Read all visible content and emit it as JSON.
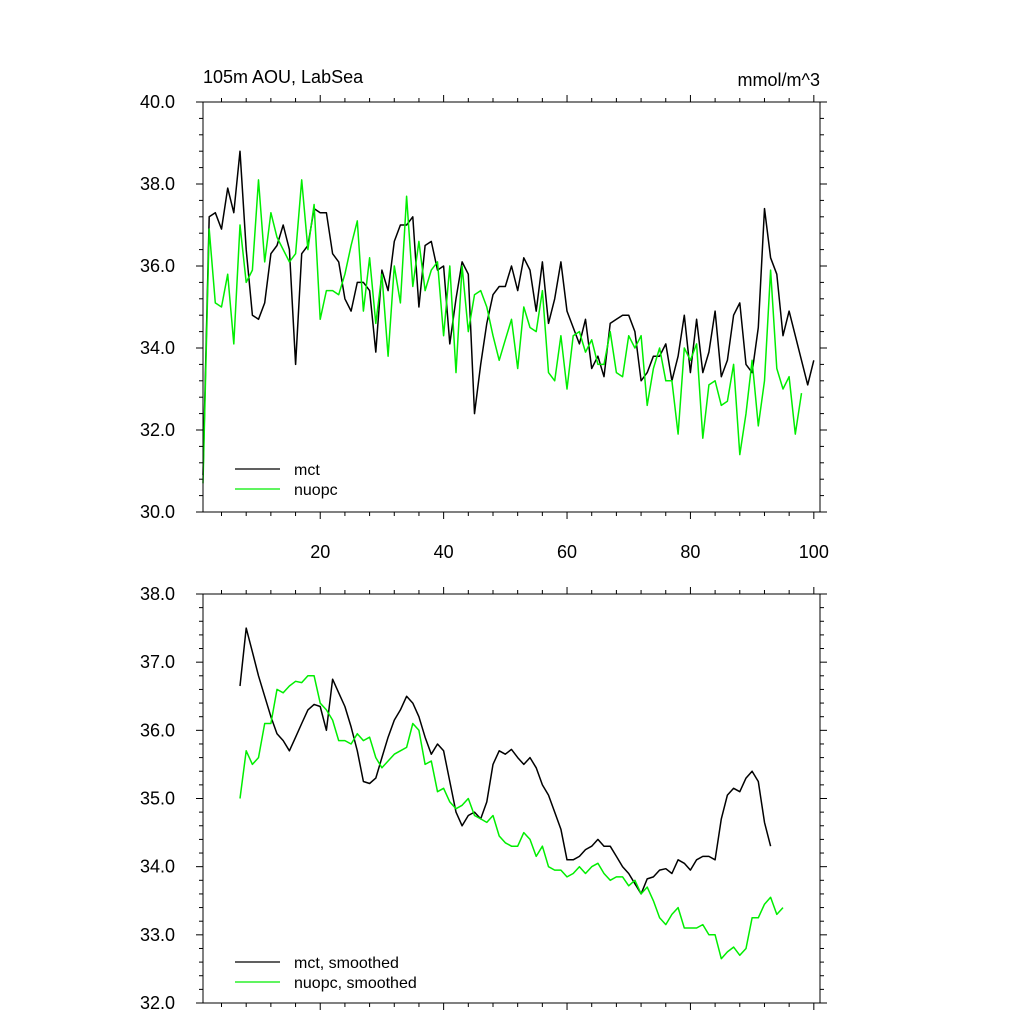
{
  "chart_data": [
    {
      "type": "line",
      "title": "105m AOU, LabSea",
      "units": "mmol/m^3",
      "xlim": [
        1,
        101
      ],
      "ylim": [
        30,
        40
      ],
      "yticks": [
        "30.0",
        "32.0",
        "34.0",
        "36.0",
        "38.0",
        "40.0"
      ],
      "xticks": [
        "20",
        "40",
        "60",
        "80",
        "100"
      ],
      "legend_position": "bottom-left",
      "series": [
        {
          "name": "mct",
          "color": "#000000",
          "values": [
            30.9,
            37.2,
            37.3,
            36.9,
            37.9,
            37.3,
            38.8,
            36.4,
            34.8,
            34.7,
            35.1,
            36.3,
            36.5,
            37.0,
            36.4,
            33.6,
            36.3,
            36.5,
            37.4,
            37.3,
            37.3,
            36.3,
            36.1,
            35.2,
            34.9,
            35.6,
            35.6,
            35.4,
            33.9,
            35.9,
            35.4,
            36.6,
            37.0,
            37.0,
            37.2,
            35.0,
            36.5,
            36.6,
            35.9,
            36.0,
            34.1,
            35.2,
            36.1,
            35.8,
            32.4,
            33.6,
            34.6,
            35.3,
            35.5,
            35.5,
            36.0,
            35.4,
            36.2,
            35.9,
            34.9,
            36.1,
            34.6,
            35.2,
            36.1,
            34.9,
            34.5,
            34.1,
            34.7,
            33.5,
            33.8,
            33.3,
            34.6,
            34.7,
            34.8,
            34.8,
            34.4,
            33.2,
            33.4,
            33.8,
            33.8,
            34.1,
            33.2,
            33.8,
            34.8,
            33.4,
            34.7,
            33.4,
            33.9,
            34.9,
            33.3,
            33.7,
            34.8,
            35.1,
            33.6,
            33.4,
            34.5,
            37.4,
            36.2,
            35.8,
            34.3,
            34.9,
            34.3,
            33.7,
            33.1,
            33.7
          ]
        },
        {
          "name": "nuopc",
          "color": "#00ee00",
          "values": [
            30.7,
            36.9,
            35.1,
            35.0,
            35.8,
            34.1,
            37.0,
            35.6,
            35.9,
            38.1,
            36.1,
            37.3,
            36.7,
            36.4,
            36.1,
            36.3,
            38.1,
            36.4,
            37.5,
            34.7,
            35.4,
            35.4,
            35.3,
            35.8,
            36.5,
            37.1,
            34.9,
            36.2,
            34.6,
            35.8,
            33.8,
            36.0,
            35.1,
            37.7,
            35.5,
            36.6,
            35.4,
            35.9,
            36.1,
            34.3,
            36.0,
            33.4,
            36.0,
            34.4,
            35.3,
            35.4,
            35.0,
            34.3,
            33.7,
            34.2,
            34.7,
            33.5,
            35.0,
            34.5,
            34.4,
            35.4,
            33.4,
            33.2,
            34.3,
            33.0,
            34.3,
            34.4,
            33.9,
            34.2,
            33.6,
            33.6,
            34.4,
            33.4,
            33.3,
            34.3,
            34.0,
            34.3,
            32.6,
            33.5,
            34.0,
            33.2,
            33.2,
            31.9,
            34.0,
            33.7,
            34.1,
            31.8,
            33.1,
            33.2,
            32.6,
            32.7,
            33.6,
            31.4,
            32.4,
            33.7,
            32.1,
            33.2,
            35.9,
            33.5,
            33.0,
            33.3,
            31.9,
            32.9
          ]
        }
      ]
    },
    {
      "type": "line",
      "xlim": [
        1,
        101
      ],
      "ylim": [
        32,
        38
      ],
      "yticks": [
        "32.0",
        "33.0",
        "34.0",
        "35.0",
        "36.0",
        "37.0",
        "38.0"
      ],
      "xticks": [],
      "legend_position": "bottom-left",
      "series": [
        {
          "name": "mct, smoothed",
          "color": "#000000",
          "values": [
            36.65,
            37.5,
            37.15,
            36.8,
            36.5,
            36.2,
            35.95,
            35.85,
            35.7,
            35.9,
            36.1,
            36.3,
            36.38,
            36.35,
            36.0,
            36.75,
            36.55,
            36.35,
            36.05,
            35.7,
            35.25,
            35.22,
            35.3,
            35.6,
            35.9,
            36.15,
            36.3,
            36.5,
            36.4,
            36.2,
            35.9,
            35.65,
            35.8,
            35.7,
            35.25,
            34.8,
            34.6,
            34.75,
            34.8,
            34.7,
            34.95,
            35.5,
            35.7,
            35.65,
            35.72,
            35.6,
            35.5,
            35.6,
            35.45,
            35.2,
            35.05,
            34.8,
            34.55,
            34.1,
            34.1,
            34.15,
            34.25,
            34.3,
            34.4,
            34.3,
            34.3,
            34.15,
            34.0,
            33.9,
            33.75,
            33.6,
            33.82,
            33.85,
            33.95,
            33.97,
            33.9,
            34.1,
            34.05,
            33.95,
            34.1,
            34.15,
            34.15,
            34.1,
            34.7,
            35.05,
            35.15,
            35.1,
            35.3,
            35.4,
            35.25,
            34.65,
            34.3
          ]
        },
        {
          "name": "nuopc, smoothed",
          "color": "#00ee00",
          "values": [
            35.0,
            35.7,
            35.5,
            35.6,
            36.1,
            36.1,
            36.6,
            36.55,
            36.65,
            36.72,
            36.7,
            36.8,
            36.8,
            36.4,
            36.3,
            36.15,
            35.85,
            35.85,
            35.8,
            35.95,
            35.85,
            35.9,
            35.6,
            35.45,
            35.55,
            35.65,
            35.7,
            35.75,
            36.1,
            36.0,
            35.5,
            35.55,
            35.1,
            35.15,
            34.95,
            34.85,
            34.9,
            35.0,
            34.75,
            34.7,
            34.65,
            34.75,
            34.45,
            34.35,
            34.3,
            34.3,
            34.5,
            34.4,
            34.15,
            34.3,
            34.0,
            33.95,
            33.95,
            33.85,
            33.9,
            34.0,
            33.9,
            34.0,
            34.05,
            33.9,
            33.8,
            33.85,
            33.85,
            33.72,
            33.8,
            33.6,
            33.7,
            33.5,
            33.25,
            33.15,
            33.3,
            33.4,
            33.1,
            33.1,
            33.1,
            33.15,
            33.0,
            33.0,
            32.65,
            32.75,
            32.82,
            32.7,
            32.8,
            33.25,
            33.25,
            33.45,
            33.55,
            33.3,
            33.4
          ]
        }
      ]
    }
  ]
}
